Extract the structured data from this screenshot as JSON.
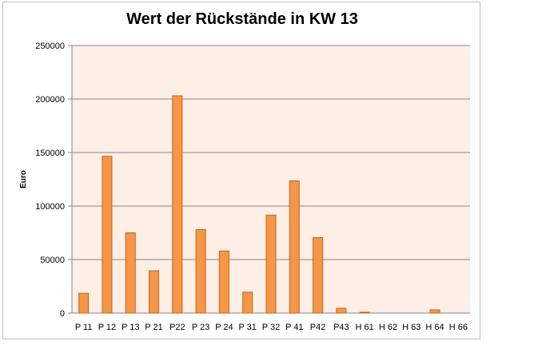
{
  "chart_data": {
    "type": "bar",
    "title": "Wert der Rückstände in KW 13",
    "xlabel": "",
    "ylabel": "Euro",
    "ylim": [
      0,
      250000
    ],
    "yticks": [
      0,
      50000,
      100000,
      150000,
      200000,
      250000
    ],
    "grid": true,
    "legend": "none",
    "categories": [
      "P 11",
      "P 12",
      "P 13",
      "P 21",
      "P22",
      "P 23",
      "P 24",
      "P 31",
      "P 32",
      "P 41",
      "P42",
      "P43",
      "H 61",
      "H 62",
      "H 63",
      "H 64",
      "H 66"
    ],
    "values": [
      18500,
      146500,
      75000,
      39500,
      203000,
      78000,
      58000,
      19500,
      91500,
      123500,
      70500,
      4500,
      800,
      0,
      0,
      3000,
      0
    ],
    "colors": {
      "bar_fill": "#f79646",
      "bar_stroke": "#c0651e",
      "plot_background": "#fdeee6",
      "gridline": "#868686",
      "axis": "#868686"
    }
  }
}
